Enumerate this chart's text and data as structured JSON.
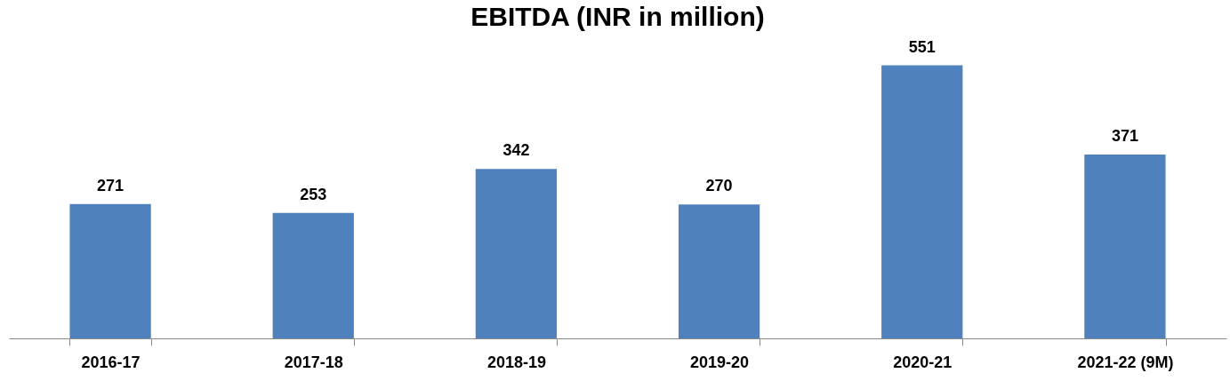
{
  "chart_data": {
    "type": "bar",
    "title": "EBITDA (INR in million)",
    "categories": [
      "2016-17",
      "2017-18",
      "2018-19",
      "2019-20",
      "2020-21",
      "2021-22 (9M)"
    ],
    "values": [
      271,
      253,
      342,
      270,
      551,
      371
    ],
    "color": "#4f81bd",
    "data_labels": true
  }
}
